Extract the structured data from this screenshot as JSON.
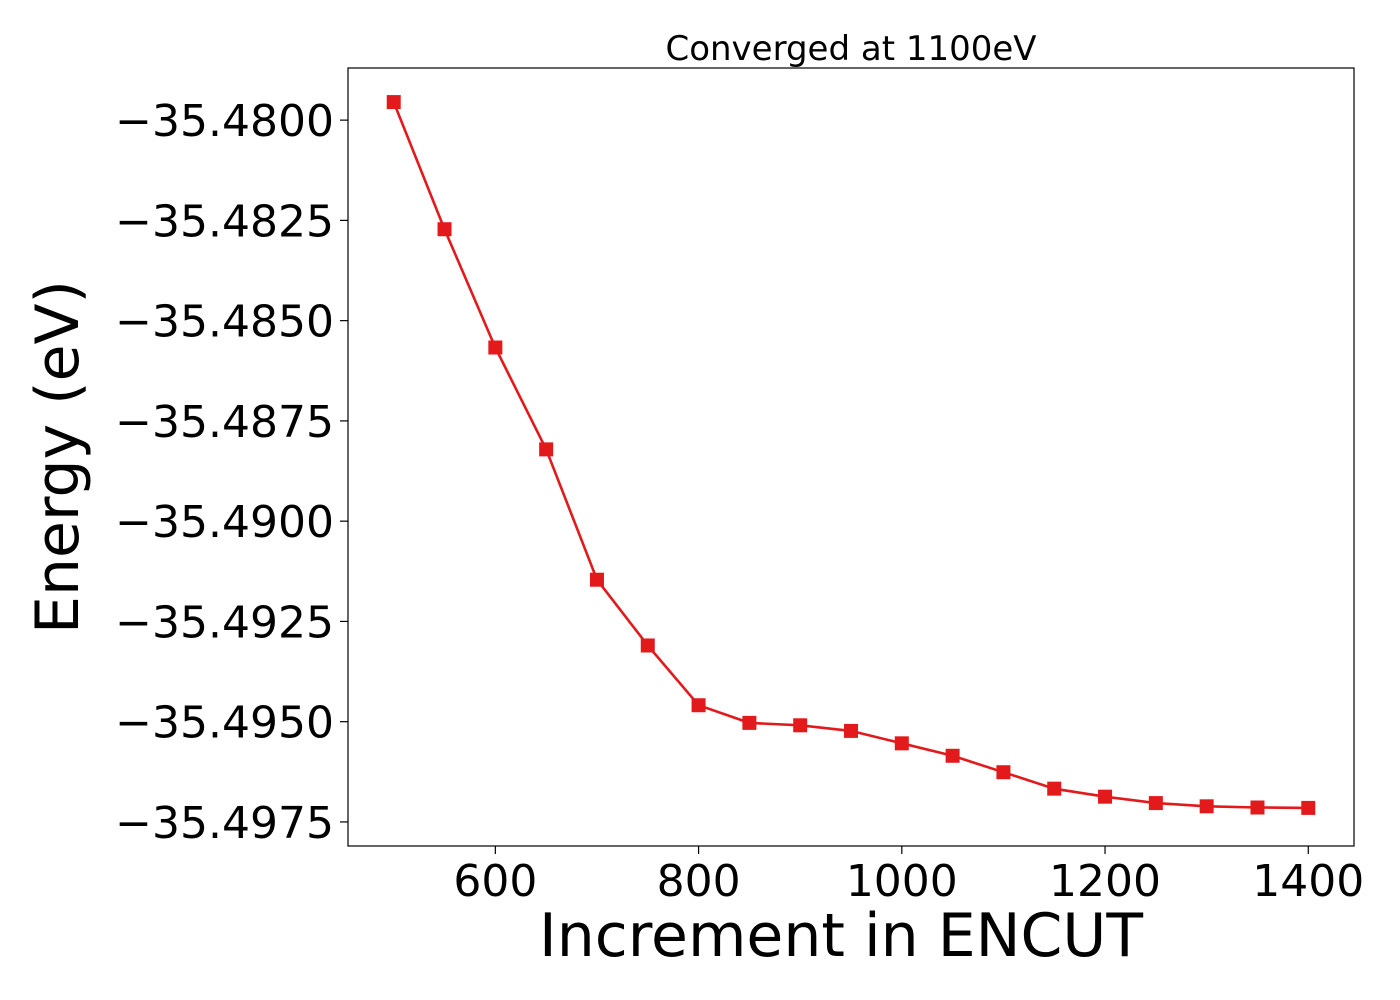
{
  "chart_data": {
    "type": "line",
    "title": "Converged at 1100eV",
    "xlabel": "Increment in ENCUT",
    "ylabel": "Energy (eV)",
    "xlim": [
      455,
      1445
    ],
    "ylim": [
      -35.4981,
      -35.4787
    ],
    "xticks": [
      600,
      800,
      1000,
      1200,
      1400
    ],
    "xtick_labels": [
      "600",
      "800",
      "1000",
      "1200",
      "1400"
    ],
    "yticks": [
      -35.48,
      -35.4825,
      -35.485,
      -35.4875,
      -35.49,
      -35.4925,
      -35.495,
      -35.4975
    ],
    "ytick_labels": [
      "−35.4800",
      "−35.4825",
      "−35.4850",
      "−35.4875",
      "−35.4900",
      "−35.4925",
      "−35.4950",
      "−35.4975"
    ],
    "grid": false,
    "marker": "square",
    "color": "#e31a1c",
    "series": [
      {
        "x": [
          500,
          550,
          600,
          650,
          700,
          750,
          800,
          850,
          900,
          950,
          1000,
          1050,
          1100,
          1150,
          1200,
          1250,
          1300,
          1350,
          1400
        ],
        "y": [
          -35.47955,
          -35.48272,
          -35.48567,
          -35.48821,
          -35.49146,
          -35.4931,
          -35.49459,
          -35.49503,
          -35.49509,
          -35.49523,
          -35.49554,
          -35.49585,
          -35.49626,
          -35.49667,
          -35.49687,
          -35.49703,
          -35.49711,
          -35.49714,
          -35.49715
        ]
      }
    ]
  }
}
